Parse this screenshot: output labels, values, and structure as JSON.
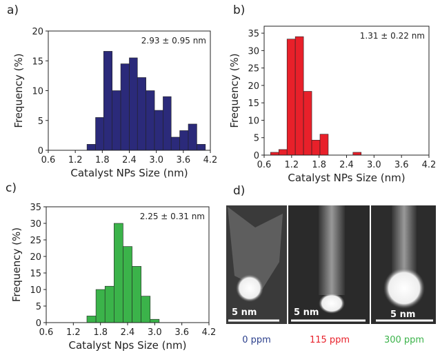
{
  "chart_data": [
    {
      "type": "histogram",
      "panel_label": "a)",
      "annotation": "2.93 ± 0.95 nm",
      "xlabel": "Catalyst NPs Size (nm)",
      "ylabel": "Frequency (%)",
      "color": "#2b2a7a",
      "bins": [
        1.46,
        1.65,
        1.83,
        2.02,
        2.21,
        2.4,
        2.58,
        2.77,
        2.96,
        3.15,
        3.33,
        3.52,
        3.71,
        3.9,
        4.09
      ],
      "values": [
        1,
        5.5,
        16.6,
        10,
        14.5,
        15.5,
        12.2,
        10,
        6.7,
        9,
        2.2,
        3.3,
        4.4,
        1
      ],
      "xlim": [
        0.6,
        4.2
      ],
      "ylim": [
        0,
        20
      ],
      "xticks": [
        0.6,
        1.2,
        1.8,
        2.4,
        {
          "value": 3,
          "label": "3.0"
        },
        3.6,
        4.2
      ],
      "yticks": [
        0,
        5,
        10,
        15,
        20
      ]
    },
    {
      "type": "histogram",
      "panel_label": "b)",
      "annotation": "1.31 ± 0.22 nm",
      "xlabel": "Catalyst NPs Size (nm)",
      "ylabel": "Frequency (%)",
      "color": "#e8202a",
      "bins": [
        0.74,
        0.92,
        1.1,
        1.28,
        1.46,
        1.64,
        1.82,
        2.0,
        2.18,
        2.36,
        2.54,
        2.72
      ],
      "values": [
        0.8,
        1.6,
        33.3,
        34,
        18.3,
        4.3,
        6,
        0,
        0,
        0,
        0.8
      ],
      "xlim": [
        0.6,
        4.2
      ],
      "ylim": [
        0,
        37
      ],
      "xticks": [
        0.6,
        1.2,
        1.8,
        2.4,
        {
          "value": 3,
          "label": "3.0"
        },
        3.6,
        4.2
      ],
      "yticks": [
        0,
        5,
        10,
        15,
        20,
        25,
        30,
        35
      ]
    },
    {
      "type": "histogram",
      "panel_label": "c)",
      "annotation": "2.25 ± 0.31 nm",
      "xlabel": "Catalyst Nps Size (nm)",
      "ylabel": "Frequency (%)",
      "color": "#3bb34a",
      "bins": [
        1.5,
        1.7,
        1.9,
        2.1,
        2.3,
        2.5,
        2.7,
        2.9,
        3.1
      ],
      "values": [
        2,
        10,
        11,
        30,
        23,
        17,
        8,
        1
      ],
      "xlim": [
        0.6,
        4.2
      ],
      "ylim": [
        0,
        35
      ],
      "xticks": [
        0.6,
        1.2,
        1.8,
        2.4,
        {
          "value": 3,
          "label": "3.0"
        },
        3.6,
        4.2
      ],
      "yticks": [
        0,
        5,
        10,
        15,
        20,
        25,
        30,
        35
      ]
    }
  ],
  "panel_d": {
    "panel_label": "d)",
    "images": [
      {
        "scale_label": "5 nm",
        "caption": "0 ppm"
      },
      {
        "scale_label": "5 nm",
        "caption": "115 ppm"
      },
      {
        "scale_label": "5 nm",
        "caption": "300 ppm"
      }
    ]
  }
}
